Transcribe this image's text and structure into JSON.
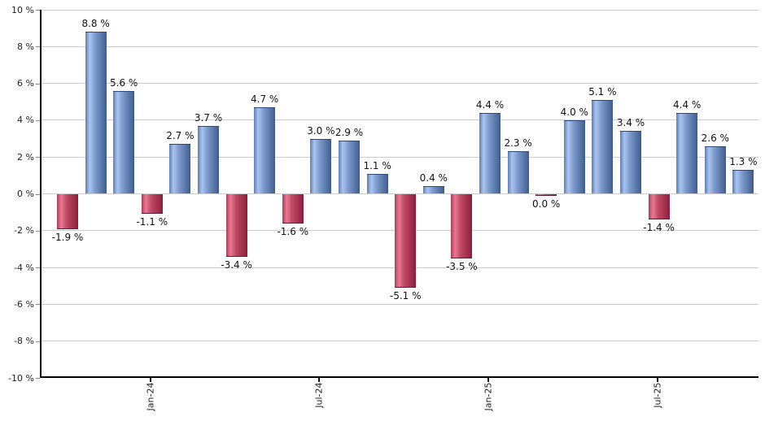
{
  "page": {
    "background_color": "#ffffff",
    "title": ""
  },
  "chart_data": {
    "type": "bar",
    "title": "",
    "xlabel": "",
    "ylabel": "",
    "unit": "%",
    "ylim": [
      -10,
      10
    ],
    "y_tick_step": 2,
    "y_tick_labels": [
      "10 %",
      "8 %",
      "6 %",
      "4 %",
      "2 %",
      "0 %",
      "-2 %",
      "-4 %",
      "-6 %",
      "-8 %",
      "-10 %"
    ],
    "y_tick_values": [
      10,
      8,
      6,
      4,
      2,
      0,
      -2,
      -4,
      -6,
      -8,
      -10
    ],
    "grid": "horizontal",
    "legend": "none",
    "x_ticks": [
      {
        "label": "Jan-24",
        "bar_index": 3
      },
      {
        "label": "Jul-24",
        "bar_index": 9
      },
      {
        "label": "Jan-25",
        "bar_index": 15
      },
      {
        "label": "Jul-25",
        "bar_index": 21
      }
    ],
    "bars": [
      {
        "value": -1.9,
        "label": "-1.9 %",
        "color": "negative"
      },
      {
        "value": 8.8,
        "label": "8.8 %",
        "color": "positive"
      },
      {
        "value": 5.6,
        "label": "5.6 %",
        "color": "positive"
      },
      {
        "value": -1.1,
        "label": "-1.1 %",
        "color": "negative"
      },
      {
        "value": 2.7,
        "label": "2.7 %",
        "color": "positive"
      },
      {
        "value": 3.7,
        "label": "3.7 %",
        "color": "positive"
      },
      {
        "value": -3.4,
        "label": "-3.4 %",
        "color": "negative"
      },
      {
        "value": 4.7,
        "label": "4.7 %",
        "color": "positive"
      },
      {
        "value": -1.6,
        "label": "-1.6 %",
        "color": "negative"
      },
      {
        "value": 3.0,
        "label": "3.0 %",
        "color": "positive"
      },
      {
        "value": 2.9,
        "label": "2.9 %",
        "color": "positive"
      },
      {
        "value": 1.1,
        "label": "1.1 %",
        "color": "positive"
      },
      {
        "value": -5.1,
        "label": "-5.1 %",
        "color": "negative"
      },
      {
        "value": 0.4,
        "label": "0.4 %",
        "color": "positive"
      },
      {
        "value": -3.5,
        "label": "-3.5 %",
        "color": "negative"
      },
      {
        "value": 4.4,
        "label": "4.4 %",
        "color": "positive"
      },
      {
        "value": 2.3,
        "label": "2.3 %",
        "color": "positive"
      },
      {
        "value": 0.0,
        "label": "0.0 %",
        "color": "negative"
      },
      {
        "value": 4.0,
        "label": "4.0 %",
        "color": "positive"
      },
      {
        "value": 5.1,
        "label": "5.1 %",
        "color": "positive"
      },
      {
        "value": 3.4,
        "label": "3.4 %",
        "color": "positive"
      },
      {
        "value": -1.4,
        "label": "-1.4 %",
        "color": "negative"
      },
      {
        "value": 4.4,
        "label": "4.4 %",
        "color": "positive"
      },
      {
        "value": 2.6,
        "label": "2.6 %",
        "color": "positive"
      },
      {
        "value": 1.3,
        "label": "1.3 %",
        "color": "positive"
      }
    ],
    "colors": {
      "positive_gradient": [
        "#5d7cb1",
        "#aac5ef",
        "#7e9bce",
        "#3e5c8d"
      ],
      "positive_edge": "#2d4a7a",
      "negative_gradient": [
        "#b13a58",
        "#e87a92",
        "#c04a66",
        "#8c1e3c"
      ],
      "negative_edge": "#701832",
      "axis": "#000000",
      "grid": "#cccccc",
      "tick_label": "#222222",
      "value_label": "#111111"
    }
  }
}
